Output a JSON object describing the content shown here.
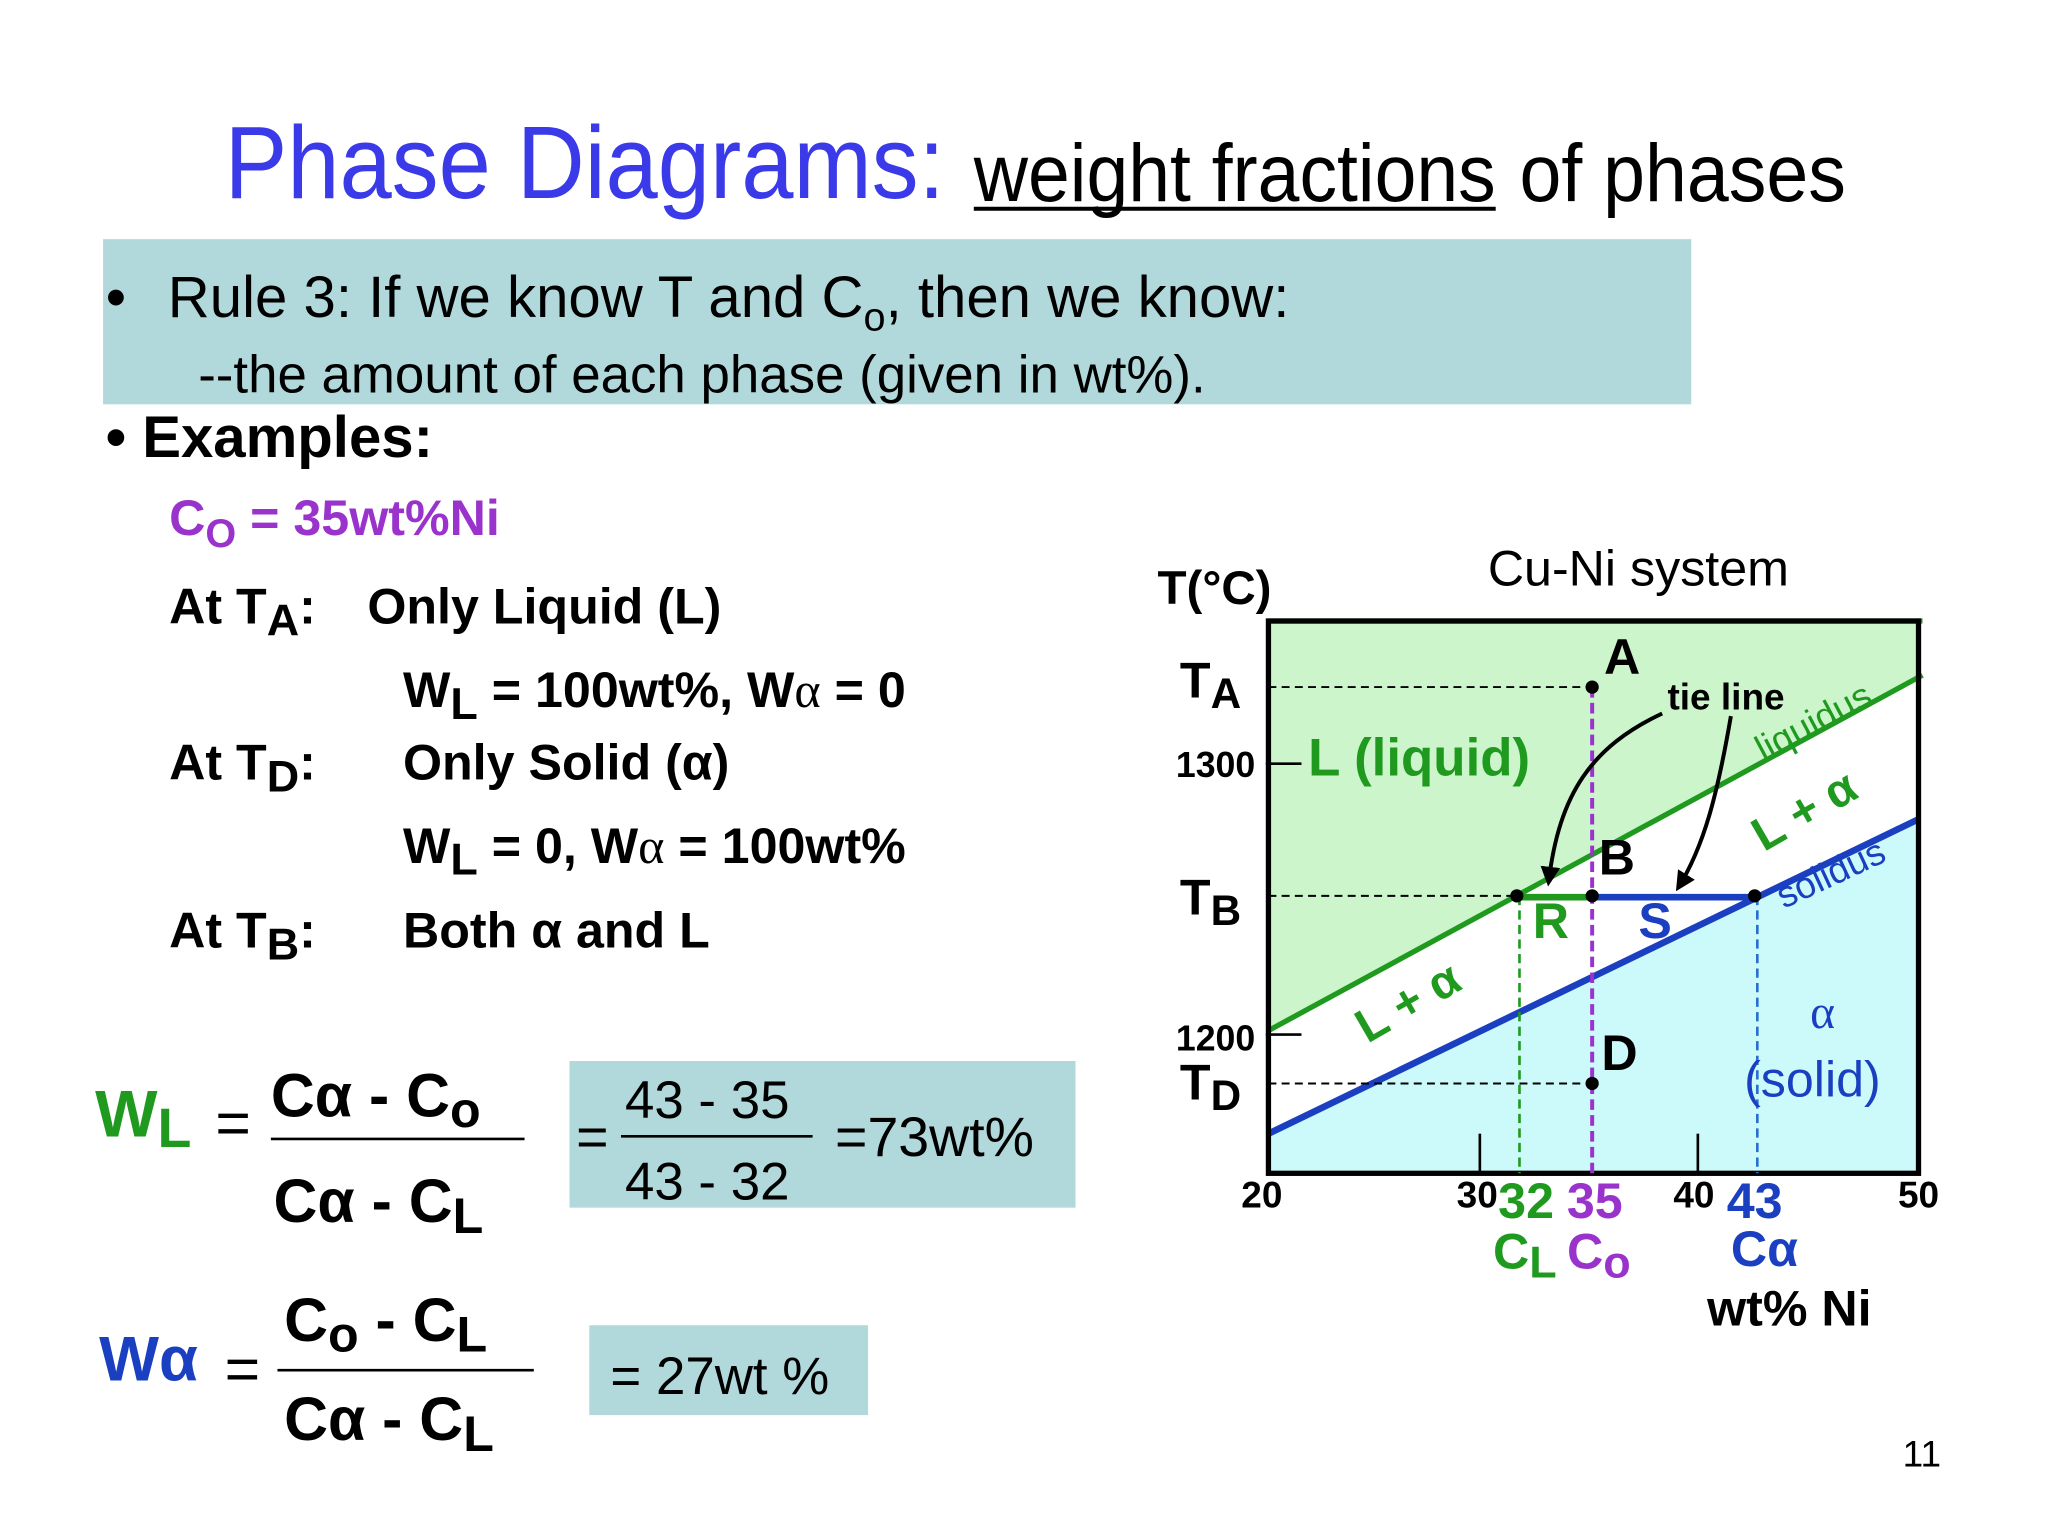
{
  "header": {
    "title_blue": "Phase Diagrams:",
    "title_underlined": "weight fractions",
    "title_rest": "of phases"
  },
  "rule3": {
    "bullet": "•",
    "line1": [
      "Rule 3:  If we know T and C",
      "o",
      ", then we know:"
    ],
    "line2": "--the amount of each phase (given in wt%)."
  },
  "examples": {
    "heading": "• Examples:",
    "composition": [
      "C",
      "O",
      " = 35wt%Ni"
    ],
    "cases": [
      {
        "label": [
          "At T",
          "A",
          ":"
        ],
        "desc": "Only Liquid (L)",
        "fractions": [
          "W",
          "L",
          " = 100wt%, W",
          "α",
          " = 0"
        ]
      },
      {
        "label": [
          "At T",
          "D",
          ":"
        ],
        "desc": "Only Solid (α)",
        "fractions": [
          "W",
          "L",
          " = 0, W",
          "α",
          " = 100wt%"
        ]
      },
      {
        "label": [
          "At T",
          "B",
          ":"
        ],
        "desc": "Both α and L"
      }
    ]
  },
  "formula_wl": {
    "lhs": [
      "W",
      "L"
    ],
    "eq": "=",
    "num": [
      "Cα - C",
      "o"
    ],
    "den": [
      "Cα - C",
      "L"
    ],
    "calc_eq": "=",
    "calc_num": "43 - 35",
    "calc_den": "43 - 32",
    "result": "=73wt%"
  },
  "formula_wa": {
    "lhs": "Wα",
    "eq": "=",
    "num": [
      "C",
      "o",
      " - C",
      "L"
    ],
    "den": [
      "Cα - C",
      "L"
    ],
    "result": "= 27wt %"
  },
  "diagram": {
    "title": "Cu-Ni system",
    "y_axis_label": "T(°C)",
    "temps": {
      "ta": [
        "T",
        "A"
      ],
      "tb": [
        "T",
        "B"
      ],
      "td": [
        "T",
        "D"
      ]
    },
    "y_ticks": [
      "1300",
      "1200"
    ],
    "x_ticks": [
      "20",
      "30",
      "40",
      "50"
    ],
    "points": {
      "a": "A",
      "b": "B",
      "d": "D",
      "r": "R",
      "s": "S"
    },
    "regions": {
      "liquid": "L (liquid)",
      "mix_upper": "L + α",
      "mix_lower": "L + α",
      "solid_alpha": "α",
      "solid_word": "(solid)"
    },
    "curves": {
      "liquidus": "liquidus",
      "solidus": "solidus",
      "tie_line": "tie line"
    },
    "compositions": {
      "cl": {
        "value": "32",
        "label": [
          "C",
          "L"
        ]
      },
      "co": {
        "value": "35",
        "label": [
          "C",
          "o"
        ]
      },
      "ca": {
        "value": "43",
        "label": "Cα"
      }
    },
    "x_axis_label": "wt% Ni"
  },
  "page_number": "11"
}
